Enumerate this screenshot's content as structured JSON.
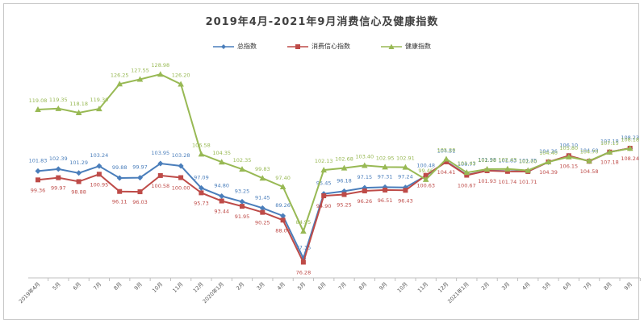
{
  "chart_data": {
    "type": "line",
    "title": "2019年4月-2021年9月消费信心及健康指数",
    "categories": [
      "2019年4月",
      "5月",
      "6月",
      "7月",
      "8月",
      "9月",
      "10月",
      "11月",
      "12月",
      "2020年1月",
      "2月",
      "3月",
      "4月",
      "5月",
      "6月",
      "7月",
      "8月",
      "9月",
      "10月",
      "11月",
      "12月",
      "2021年1月",
      "2月",
      "3月",
      "4月",
      "5月",
      "6月",
      "7月",
      "8月",
      "9月"
    ],
    "series": [
      {
        "name": "总指数",
        "color": "#4a7ebb",
        "marker": "diamond",
        "values": [
          101.83,
          102.39,
          101.29,
          103.24,
          99.88,
          99.97,
          103.95,
          103.28,
          97.09,
          94.8,
          93.25,
          91.45,
          89.26,
          77.35,
          95.45,
          96.18,
          97.15,
          97.31,
          97.24,
          100.48,
          104.51,
          100.77,
          101.98,
          101.83,
          101.75,
          104.36,
          106.1,
          104.6,
          107.18,
          108.23
        ],
        "labels": [
          "101.83",
          "102.39",
          "101.29",
          "103.24",
          "99.88",
          "99.97",
          "103.95",
          "103.28",
          "97.09",
          "94.80",
          "93.25",
          "91.45",
          "89.26",
          "77.35",
          "95.45",
          "96.18",
          "97.15",
          "97.31",
          "97.24",
          "100.48",
          "104.51",
          "100.77",
          "101.98",
          "101.83",
          "101.75",
          "104.36",
          "106.10",
          "104.60",
          "107.18",
          "108.23"
        ]
      },
      {
        "name": "消费信心指数",
        "color": "#be4b48",
        "marker": "square",
        "values": [
          99.36,
          99.97,
          98.88,
          100.95,
          96.11,
          96.03,
          100.58,
          100.0,
          95.73,
          93.44,
          91.95,
          90.25,
          88.07,
          76.28,
          94.9,
          95.25,
          96.26,
          96.51,
          96.43,
          100.63,
          104.41,
          100.67,
          101.93,
          101.74,
          101.71,
          104.39,
          106.15,
          104.58,
          107.18,
          108.24
        ],
        "labels": [
          "99.36",
          "99.97",
          "98.88",
          "100.95",
          "96.11",
          "96.03",
          "100.58",
          "100.00",
          "95.73",
          "93.44",
          "91.95",
          "90.25",
          "88.07",
          "76.28",
          "94.90",
          "95.25",
          "96.26",
          "96.51",
          "96.43",
          "100.63",
          "104.41",
          "100.67",
          "101.93",
          "101.74",
          "101.71",
          "104.39",
          "106.15",
          "104.58",
          "107.18",
          "108.24"
        ]
      },
      {
        "name": "健康指数",
        "color": "#98b954",
        "marker": "triangle",
        "values": [
          119.08,
          119.35,
          118.18,
          119.3,
          126.25,
          127.55,
          128.98,
          126.2,
          106.58,
          104.35,
          102.35,
          99.83,
          97.4,
          84.95,
          102.13,
          102.68,
          103.4,
          102.95,
          102.91,
          99.46,
          105.2,
          101.43,
          102.38,
          102.43,
          102.0,
          104.4,
          105.8,
          104.7,
          107.15,
          108.18
        ],
        "labels": [
          "119.08",
          "119.35",
          "118.18",
          "119.30",
          "126.25",
          "127.55",
          "128.98",
          "126.20",
          "106.58",
          "104.35",
          "102.35",
          "99.83",
          "97.40",
          "84.95",
          "102.13",
          "102.68",
          "103.40",
          "102.95",
          "102.91",
          "99.46",
          "105.20",
          "101.43",
          "102.38",
          "102.43",
          "102.00",
          "104.40",
          "105.80",
          "104.70",
          "107.15",
          "108.18"
        ]
      }
    ],
    "ylim": [
      73,
      134
    ],
    "grid": false,
    "legend_position": "top"
  }
}
